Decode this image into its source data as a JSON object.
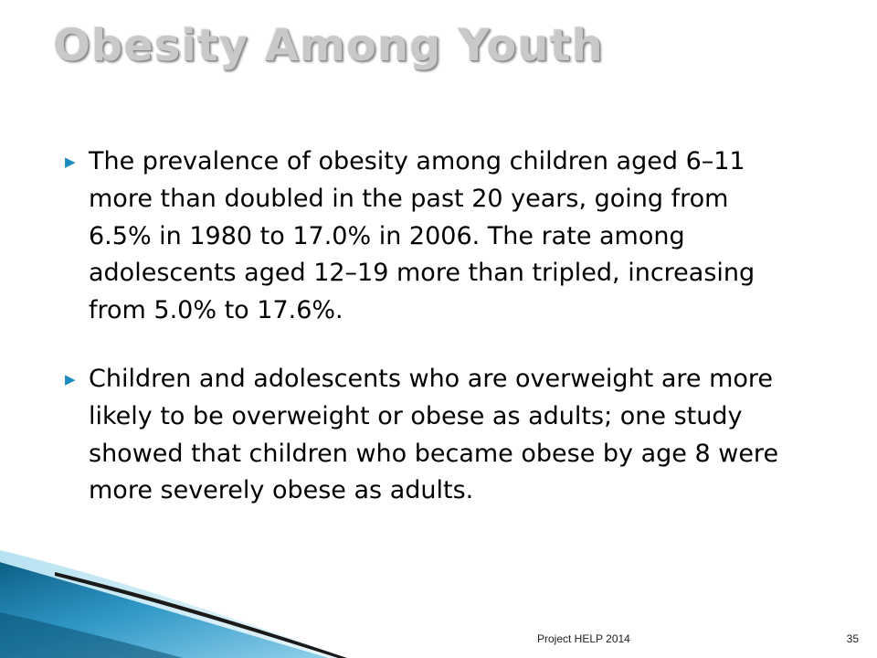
{
  "slide": {
    "title": "Obesity Among Youth",
    "bullet_icon": "triangle-right-icon",
    "bullets": [
      {
        "text": "The prevalence of obesity among children aged 6–11 more than doubled in the past 20 years, going from 6.5% in 1980 to 17.0% in 2006. The rate among adolescents aged 12–19 more than tripled, increasing from 5.0% to 17.6%."
      },
      {
        "text": "Children and adolescents who are overweight are more likely to be overweight or obese as adults; one study showed that children who became obese by age 8 were more severely obese as adults."
      }
    ],
    "footer": "Project HELP 2014",
    "page_number": "35",
    "colors": {
      "title": "#c9c9c9",
      "bullet": "#1b8cbf",
      "accent_dark": "#0d5f86",
      "accent_light": "#7cc4e0"
    }
  }
}
